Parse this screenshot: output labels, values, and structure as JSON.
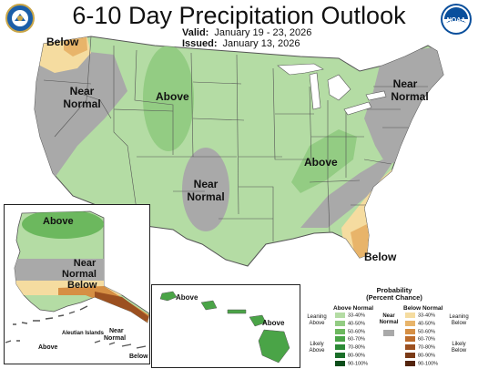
{
  "header": {
    "title": "6-10 Day Precipitation Outlook",
    "valid_label": "Valid:",
    "valid_value": "January 19 - 23, 2026",
    "issued_label": "Issued:",
    "issued_value": "January 13, 2026"
  },
  "map_labels": {
    "nw_below": "Below",
    "west_near_1": "Near",
    "west_near_2": "Normal",
    "plains_above": "Above",
    "south_near_1": "Near",
    "south_near_2": "Normal",
    "ohio_above": "Above",
    "ne_near_1": "Near",
    "ne_near_2": "Normal",
    "fl_below": "Below"
  },
  "alaska_labels": {
    "above": "Above",
    "near_1": "Near",
    "near_2": "Normal",
    "below": "Below",
    "aleutian_title": "Aleutian Islands",
    "aleutian_above": "Above",
    "aleutian_near_1": "Near",
    "aleutian_near_2": "Normal",
    "aleutian_below": "Below"
  },
  "hawaii_labels": {
    "above_west": "Above",
    "above_east": "Above"
  },
  "legend": {
    "title_1": "Probability",
    "title_2": "(Percent Chance)",
    "above_head": "Above Normal",
    "below_head": "Below Normal",
    "near_head_1": "Near",
    "near_head_2": "Normal",
    "leaning_above_1": "Leaning",
    "leaning_above_2": "Above",
    "likely_above_1": "Likely",
    "likely_above_2": "Above",
    "leaning_below_1": "Leaning",
    "leaning_below_2": "Below",
    "likely_below_1": "Likely",
    "likely_below_2": "Below",
    "above_rows": [
      {
        "label": "33-40%",
        "color": "#b4dca4"
      },
      {
        "label": "40-50%",
        "color": "#93cc83"
      },
      {
        "label": "50-60%",
        "color": "#6cb85e"
      },
      {
        "label": "60-70%",
        "color": "#4aa447"
      },
      {
        "label": "70-80%",
        "color": "#2c8a36"
      },
      {
        "label": "80-90%",
        "color": "#1a6e29"
      },
      {
        "label": "90-100%",
        "color": "#0b4d1a"
      }
    ],
    "below_rows": [
      {
        "label": "33-40%",
        "color": "#f5dca0"
      },
      {
        "label": "40-50%",
        "color": "#e8b46a"
      },
      {
        "label": "50-60%",
        "color": "#d68f44"
      },
      {
        "label": "60-70%",
        "color": "#bd6c2c"
      },
      {
        "label": "70-80%",
        "color": "#9c5020"
      },
      {
        "label": "80-90%",
        "color": "#7a3a16"
      },
      {
        "label": "90-100%",
        "color": "#53240c"
      }
    ],
    "near_color": "#a9a9a9"
  },
  "colors": {
    "above_light": "#b4dca4",
    "above_mid": "#93cc83",
    "near": "#a9a9a9",
    "below_light": "#f5dca0",
    "below_mid": "#e8b46a",
    "below_dark": "#d68f44",
    "state_line": "#555555"
  }
}
